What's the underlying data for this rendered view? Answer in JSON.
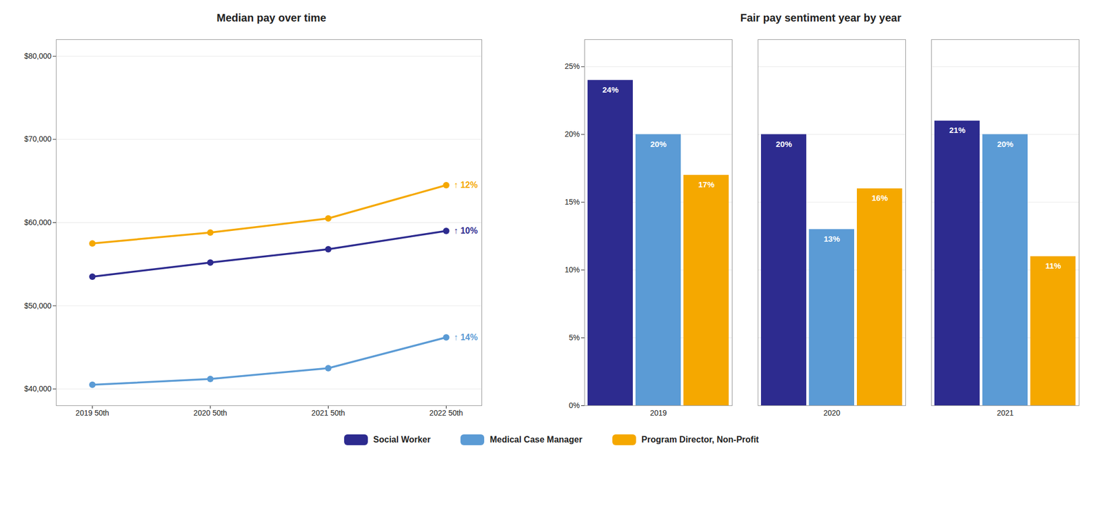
{
  "chart_data": [
    {
      "type": "line",
      "title": "Median pay over time",
      "categories": [
        "2019 50th",
        "2020 50th",
        "2021 50th",
        "2022 50th"
      ],
      "series": [
        {
          "name": "Social Worker",
          "color": "#2D2B8F",
          "values": [
            53500,
            55200,
            56800,
            59000
          ]
        },
        {
          "name": "Medical Case Manager",
          "color": "#5B9BD5",
          "values": [
            40500,
            41200,
            42500,
            46200
          ]
        },
        {
          "name": "Program Director, Non-Profit",
          "color": "#F5A800",
          "values": [
            57500,
            58800,
            60500,
            64500
          ]
        }
      ],
      "ylim": [
        38000,
        82000
      ],
      "yticks": [
        {
          "value": 40000,
          "label": "$40,000"
        },
        {
          "value": 50000,
          "label": "$50,000"
        },
        {
          "value": 60000,
          "label": "$60,000"
        },
        {
          "value": 70000,
          "label": "$70,000"
        },
        {
          "value": 80000,
          "label": "$80,000"
        }
      ],
      "grid": true,
      "marker": "o",
      "legend": "bottom",
      "annotations": [
        {
          "text": "↑ 12%",
          "x": "2022 50th",
          "y": 64500,
          "color": "#F5A800"
        },
        {
          "text": "↑ 10%",
          "x": "2022 50th",
          "y": 59000,
          "color": "#2D2B8F"
        },
        {
          "text": "↑ 14%",
          "x": "2022 50th",
          "y": 46200,
          "color": "#5B9BD5"
        }
      ]
    },
    {
      "type": "bar",
      "title": "Fair pay sentiment year by year",
      "categories": [
        "2019",
        "2020",
        "2021"
      ],
      "series": [
        {
          "name": "Social Worker",
          "color": "#2D2B8F",
          "values": [
            24,
            20,
            21
          ],
          "value_labels": [
            "24%",
            "20%",
            "21%"
          ]
        },
        {
          "name": "Medical Case Manager",
          "color": "#5B9BD5",
          "values": [
            20,
            13,
            20
          ],
          "value_labels": [
            "20%",
            "13%",
            "20%"
          ]
        },
        {
          "name": "Program Director, Non-Profit",
          "color": "#F5A800",
          "values": [
            17,
            16,
            11
          ],
          "value_labels": [
            "17%",
            "16%",
            "11%"
          ]
        }
      ],
      "ylim": [
        0,
        27
      ],
      "yticks": [
        {
          "value": 0,
          "label": "0%"
        },
        {
          "value": 5,
          "label": "5%"
        },
        {
          "value": 10,
          "label": "10%"
        },
        {
          "value": 15,
          "label": "15%"
        },
        {
          "value": 20,
          "label": "20%"
        },
        {
          "value": 25,
          "label": "25%"
        }
      ],
      "grid": true,
      "data_labels": true,
      "legend": "bottom"
    }
  ]
}
